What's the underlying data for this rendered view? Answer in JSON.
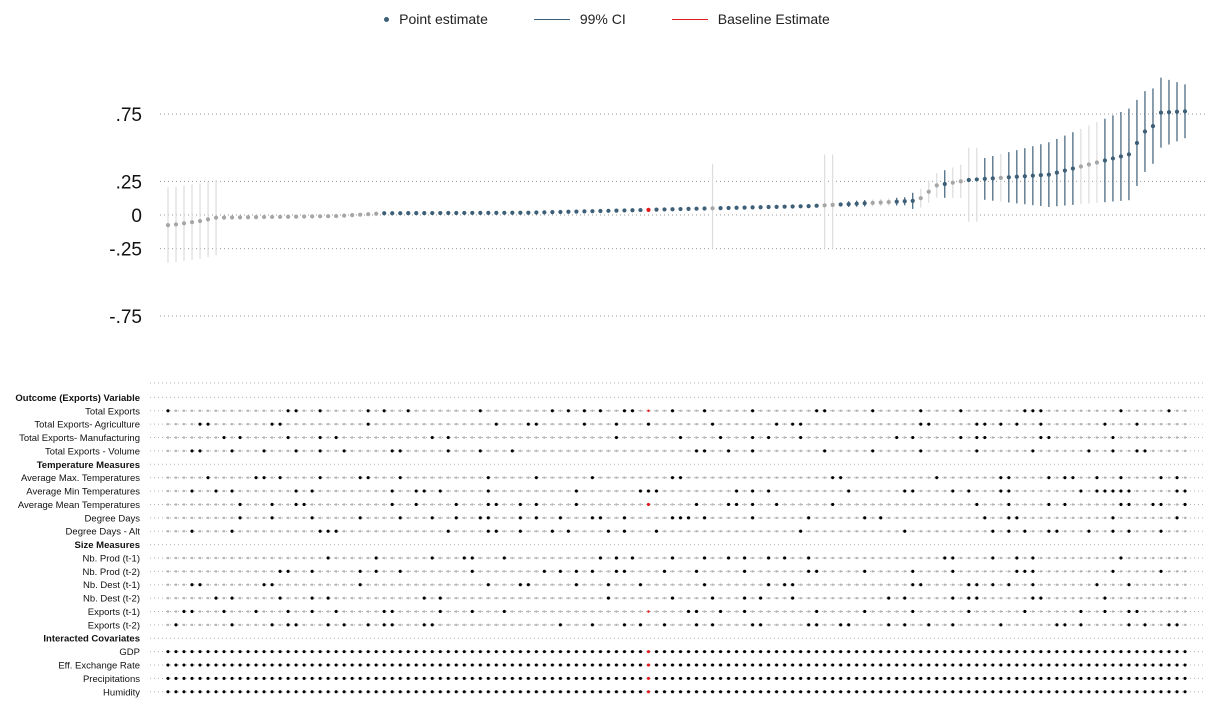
{
  "chart_data": {
    "type": "scatter",
    "title": "",
    "xlabel": "",
    "ylabel": "",
    "ylim": [
      -0.95,
      1.05
    ],
    "yticks": [
      0.75,
      0.25,
      0,
      -0.25,
      -0.75
    ],
    "ytick_labels": [
      ".75",
      ".25",
      "0",
      "-.25",
      "-.75"
    ],
    "grid": true,
    "legend_position": "top",
    "legend": [
      {
        "label": "Point estimate",
        "symbol": "dot",
        "color": "#3d5f78"
      },
      {
        "label": "99% CI",
        "symbol": "line",
        "color": "#3d5f78"
      },
      {
        "label": "Baseline Estimate",
        "symbol": "line",
        "color": "#e41a1c"
      }
    ],
    "colors": {
      "significant": "#3d5f78",
      "insignificant": "#a6a6a6",
      "insignificant_ci": "#dcdcdc",
      "baseline": "#e41a1c",
      "on": "#000000",
      "off": "#b5b5b5"
    },
    "n_specifications": 128,
    "baseline_index": 60,
    "estimates": {
      "breakpoints": [
        0,
        1,
        4,
        6,
        21,
        27,
        45,
        60,
        61,
        80,
        93,
        94,
        96,
        100,
        110,
        120,
        122,
        123,
        124,
        127
      ],
      "values": [
        -0.075,
        -0.07,
        -0.045,
        -0.02,
        -0.008,
        0.013,
        0.017,
        0.038,
        0.04,
        0.066,
        0.105,
        0.125,
        0.22,
        0.26,
        0.3,
        0.45,
        0.62,
        0.66,
        0.76,
        0.77
      ],
      "ci_half_width": {
        "breakpoints": [
          0,
          6,
          7,
          60,
          80,
          92,
          93,
          110,
          120,
          127
        ],
        "values": [
          0.28,
          0.28,
          0.01,
          0.01,
          0.015,
          0.03,
          0.06,
          0.24,
          0.34,
          0.2
        ]
      },
      "insignificant_ranges": [
        [
          0,
          26
        ],
        [
          68,
          68
        ],
        [
          82,
          83
        ],
        [
          88,
          90
        ],
        [
          94,
          96
        ],
        [
          98,
          99
        ],
        [
          104,
          104
        ],
        [
          114,
          116
        ]
      ],
      "wide_grey_ci": [
        {
          "index": 68,
          "low": -0.25,
          "high": 0.38
        },
        {
          "index": 82,
          "low": -0.25,
          "high": 0.45
        },
        {
          "index": 83,
          "low": -0.25,
          "high": 0.45
        },
        {
          "index": 100,
          "low": -0.05,
          "high": 0.5
        },
        {
          "index": 101,
          "low": -0.05,
          "high": 0.5
        }
      ]
    },
    "specification_panel": {
      "groups": [
        {
          "label": "Outcome (Exports) Variable",
          "rows": [
            "Total Exports",
            "Total Exports- Agriculture",
            "Total Exports- Manufacturing",
            "Total Exports - Volume"
          ]
        },
        {
          "label": "Temperature Measures",
          "rows": [
            "Average Max. Temperatures",
            "Average Min Temperatures",
            "Average Mean Temperatures",
            "Degree Days",
            "Degree Days - Alt"
          ]
        },
        {
          "label": "Size Measures",
          "rows": [
            "Nb. Prod (t-1)",
            "Nb. Prod (t-2)",
            "Nb. Dest (t-1)",
            "Nb. Dest (t-2)",
            "Exports (t-1)",
            "Exports (t-2)"
          ]
        },
        {
          "label": "Interacted Covariates",
          "rows": [
            "GDP",
            "Eff. Exchange Rate",
            "Precipitations",
            "Humidity"
          ]
        }
      ],
      "always_included": [
        "GDP",
        "Eff. Exchange Rate",
        "Precipitations",
        "Humidity"
      ]
    }
  }
}
